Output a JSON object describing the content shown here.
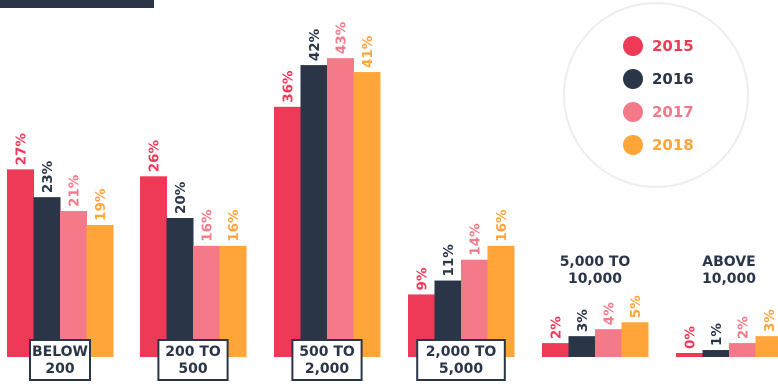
{
  "chart_data": {
    "type": "bar",
    "categories": [
      [
        "BELOW",
        "200"
      ],
      [
        "200 TO",
        "500"
      ],
      [
        "500 TO",
        "2,000"
      ],
      [
        "2,000 TO",
        "5,000"
      ],
      [
        "5,000 TO",
        "10,000"
      ],
      [
        "ABOVE",
        "10,000"
      ]
    ],
    "series": [
      {
        "name": "2015",
        "color": "#ee3a57",
        "values": [
          27,
          26,
          36,
          9,
          2,
          0
        ]
      },
      {
        "name": "2016",
        "color": "#2a3548",
        "values": [
          23,
          20,
          42,
          11,
          3,
          1
        ]
      },
      {
        "name": "2017",
        "color": "#f47a89",
        "values": [
          21,
          16,
          43,
          14,
          4,
          2
        ]
      },
      {
        "name": "2018",
        "color": "#ffa53a",
        "values": [
          19,
          16,
          41,
          16,
          5,
          3
        ]
      }
    ],
    "value_suffix": "%",
    "legend_position": "top-right",
    "grid": false,
    "ylim": [
      0,
      43
    ]
  }
}
